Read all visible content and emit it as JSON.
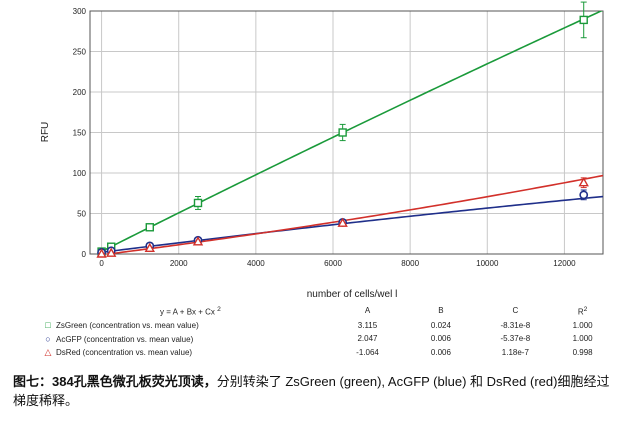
{
  "chart_data": {
    "type": "scatter",
    "xlabel": "number of cells/wel l",
    "ylabel": "RFU",
    "xlim": [
      -300,
      13000
    ],
    "ylim": [
      0,
      300
    ],
    "x_ticks": [
      0,
      2000,
      4000,
      6000,
      8000,
      10000,
      12000
    ],
    "y_ticks": [
      0,
      50,
      100,
      150,
      200,
      250,
      300
    ],
    "grid": true,
    "series": [
      {
        "name": "ZsGreen (concentration vs. mean value)",
        "marker": "square",
        "color": "#1a9a3a",
        "x": [
          0,
          250,
          1250,
          2500,
          6250,
          12500
        ],
        "y": [
          3,
          9,
          33,
          63,
          150,
          289
        ],
        "error": [
          0,
          0,
          0,
          8,
          10,
          22
        ],
        "fit": {
          "A": 3.115,
          "B": 0.024,
          "C": -8.31e-08,
          "R2": 1.0
        }
      },
      {
        "name": "AcGFP (concentration vs. mean value)",
        "marker": "circle",
        "color": "#1f2f8a",
        "x": [
          0,
          250,
          1250,
          2500,
          6250,
          12500
        ],
        "y": [
          2,
          4,
          10,
          17,
          39,
          73
        ],
        "error": [
          0,
          0,
          0,
          0,
          0,
          6
        ],
        "fit": {
          "A": 2.047,
          "B": 0.006,
          "C": -5.37e-08,
          "R2": 1.0
        }
      },
      {
        "name": "DsRed (concentration vs. mean value)",
        "marker": "triangle",
        "color": "#d2302a",
        "x": [
          0,
          250,
          1250,
          2500,
          6250,
          12500
        ],
        "y": [
          0,
          1,
          7,
          15,
          38,
          88
        ],
        "error": [
          0,
          0,
          0,
          0,
          0,
          6
        ],
        "fit": {
          "A": -1.064,
          "B": 0.006,
          "C": 1.18e-07,
          "R2": 0.998
        }
      }
    ]
  },
  "fit_table": {
    "equation": "y = A + Bx + Cx",
    "equation_sup": "2",
    "headers": [
      "A",
      "B",
      "C",
      "R"
    ],
    "r_sup": "2",
    "rows": [
      {
        "marker": "□",
        "name": "ZsGreen (concentration vs. mean value)",
        "A": "3.115",
        "B": "0.024",
        "C": "-8.31e-8",
        "R2": "1.000"
      },
      {
        "marker": "○",
        "name": "AcGFP (concentration vs. mean value)",
        "A": "2.047",
        "B": "0.006",
        "C": "-5.37e-8",
        "R2": "1.000"
      },
      {
        "marker": "△",
        "name": "DsRed (concentration vs. mean value)",
        "A": "-1.064",
        "B": "0.006",
        "C": "1.18e-7",
        "R2": "0.998"
      }
    ]
  },
  "caption": {
    "bold": "图七：384孔黑色微孔板荧光顶读，",
    "normal": "分别转染了 ZsGreen (green), AcGFP (blue) 和 DsRed (red)细胞经过梯度稀释。"
  }
}
